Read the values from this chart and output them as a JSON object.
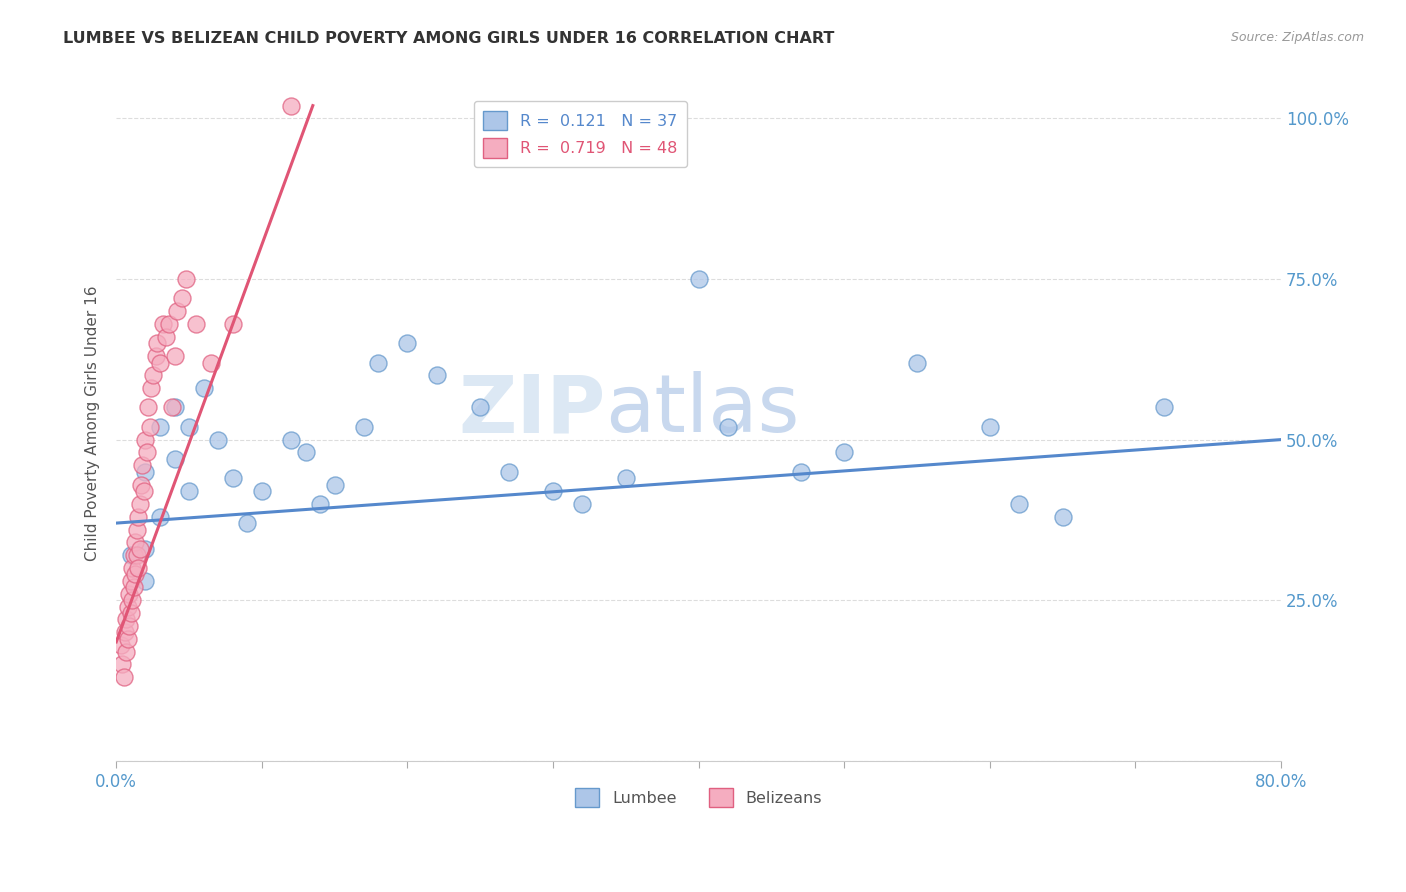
{
  "title": "LUMBEE VS BELIZEAN CHILD POVERTY AMONG GIRLS UNDER 16 CORRELATION CHART",
  "source": "Source: ZipAtlas.com",
  "ylabel": "Child Poverty Among Girls Under 16",
  "watermark_zip": "ZIP",
  "watermark_atlas": "atlas",
  "xlim": [
    0.0,
    0.8
  ],
  "ylim": [
    0.0,
    1.05
  ],
  "xticks": [
    0.0,
    0.1,
    0.2,
    0.3,
    0.4,
    0.5,
    0.6,
    0.7,
    0.8
  ],
  "xticklabels": [
    "0.0%",
    "",
    "",
    "",
    "",
    "",
    "",
    "",
    "80.0%"
  ],
  "yticks": [
    0.0,
    0.25,
    0.5,
    0.75,
    1.0
  ],
  "yticklabels_right": [
    "",
    "25.0%",
    "50.0%",
    "75.0%",
    "100.0%"
  ],
  "lumbee_R": 0.121,
  "lumbee_N": 37,
  "belizean_R": 0.719,
  "belizean_N": 48,
  "lumbee_color": "#adc6e8",
  "belizean_color": "#f5adc0",
  "lumbee_edge_color": "#6699cc",
  "belizean_edge_color": "#e06080",
  "lumbee_line_color": "#5588cc",
  "belizean_line_color": "#e05575",
  "lumbee_x": [
    0.01,
    0.02,
    0.02,
    0.02,
    0.03,
    0.03,
    0.04,
    0.04,
    0.05,
    0.05,
    0.06,
    0.07,
    0.08,
    0.09,
    0.1,
    0.12,
    0.13,
    0.14,
    0.15,
    0.17,
    0.18,
    0.2,
    0.22,
    0.25,
    0.27,
    0.3,
    0.32,
    0.35,
    0.4,
    0.42,
    0.47,
    0.5,
    0.55,
    0.6,
    0.62,
    0.65,
    0.72
  ],
  "lumbee_y": [
    0.32,
    0.28,
    0.33,
    0.45,
    0.52,
    0.38,
    0.47,
    0.55,
    0.52,
    0.42,
    0.58,
    0.5,
    0.44,
    0.37,
    0.42,
    0.5,
    0.48,
    0.4,
    0.43,
    0.52,
    0.62,
    0.65,
    0.6,
    0.55,
    0.45,
    0.42,
    0.4,
    0.44,
    0.75,
    0.52,
    0.45,
    0.48,
    0.62,
    0.52,
    0.4,
    0.38,
    0.55
  ],
  "belizean_x": [
    0.003,
    0.004,
    0.005,
    0.006,
    0.007,
    0.007,
    0.008,
    0.008,
    0.009,
    0.009,
    0.01,
    0.01,
    0.011,
    0.011,
    0.012,
    0.012,
    0.013,
    0.013,
    0.014,
    0.014,
    0.015,
    0.015,
    0.016,
    0.016,
    0.017,
    0.018,
    0.019,
    0.02,
    0.021,
    0.022,
    0.023,
    0.024,
    0.025,
    0.027,
    0.028,
    0.03,
    0.032,
    0.034,
    0.036,
    0.038,
    0.04,
    0.042,
    0.045,
    0.048,
    0.055,
    0.065,
    0.08,
    0.12
  ],
  "belizean_y": [
    0.18,
    0.15,
    0.13,
    0.2,
    0.17,
    0.22,
    0.19,
    0.24,
    0.21,
    0.26,
    0.23,
    0.28,
    0.25,
    0.3,
    0.27,
    0.32,
    0.29,
    0.34,
    0.32,
    0.36,
    0.3,
    0.38,
    0.33,
    0.4,
    0.43,
    0.46,
    0.42,
    0.5,
    0.48,
    0.55,
    0.52,
    0.58,
    0.6,
    0.63,
    0.65,
    0.62,
    0.68,
    0.66,
    0.68,
    0.55,
    0.63,
    0.7,
    0.72,
    0.75,
    0.68,
    0.62,
    0.68,
    1.02
  ],
  "lumbee_trend_x": [
    0.0,
    0.8
  ],
  "lumbee_trend_y": [
    0.37,
    0.5
  ],
  "belizean_trend_x": [
    0.0,
    0.135
  ],
  "belizean_trend_y": [
    0.185,
    1.02
  ],
  "background_color": "#ffffff",
  "grid_color": "#dddddd",
  "legend_R_label1": "R =  0.121   N = 37",
  "legend_R_label2": "R =  0.719   N = 48",
  "legend_bottom_label1": "Lumbee",
  "legend_bottom_label2": "Belizeans"
}
